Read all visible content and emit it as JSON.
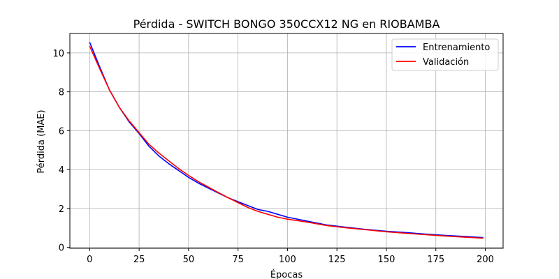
{
  "chart_data": {
    "type": "line",
    "title": "Pérdida - SWITCH BONGO 350CCX12 NG en RIOBAMBA",
    "xlabel": "Épocas",
    "ylabel": "Pérdida (MAE)",
    "xlim": [
      -10,
      209
    ],
    "ylim": [
      -0.05,
      11.0
    ],
    "xticks": [
      0,
      25,
      50,
      75,
      100,
      125,
      150,
      175,
      200
    ],
    "yticks": [
      0,
      2,
      4,
      6,
      8,
      10
    ],
    "grid": true,
    "legend_position": "top-right",
    "series": [
      {
        "name": "Entrenamiento",
        "color": "#0000ff",
        "x": [
          0,
          5,
          10,
          15,
          20,
          25,
          30,
          35,
          40,
          45,
          50,
          55,
          60,
          65,
          70,
          75,
          80,
          85,
          90,
          95,
          100,
          110,
          120,
          130,
          140,
          150,
          160,
          170,
          180,
          190,
          199
        ],
        "y": [
          10.55,
          9.3,
          8.1,
          7.2,
          6.45,
          5.85,
          5.2,
          4.7,
          4.3,
          3.95,
          3.6,
          3.3,
          3.05,
          2.8,
          2.55,
          2.35,
          2.15,
          1.95,
          1.85,
          1.7,
          1.55,
          1.35,
          1.15,
          1.03,
          0.92,
          0.83,
          0.76,
          0.68,
          0.61,
          0.56,
          0.5
        ]
      },
      {
        "name": "Validación",
        "color": "#ff0000",
        "x": [
          0,
          5,
          10,
          15,
          20,
          25,
          30,
          35,
          40,
          45,
          50,
          55,
          60,
          65,
          70,
          75,
          80,
          85,
          90,
          95,
          100,
          110,
          120,
          130,
          140,
          150,
          160,
          170,
          180,
          190,
          199
        ],
        "y": [
          10.35,
          9.2,
          8.1,
          7.2,
          6.5,
          5.9,
          5.3,
          4.85,
          4.45,
          4.05,
          3.7,
          3.38,
          3.1,
          2.82,
          2.55,
          2.3,
          2.05,
          1.85,
          1.7,
          1.55,
          1.45,
          1.3,
          1.12,
          1.0,
          0.9,
          0.8,
          0.72,
          0.65,
          0.58,
          0.52,
          0.47
        ]
      }
    ]
  }
}
